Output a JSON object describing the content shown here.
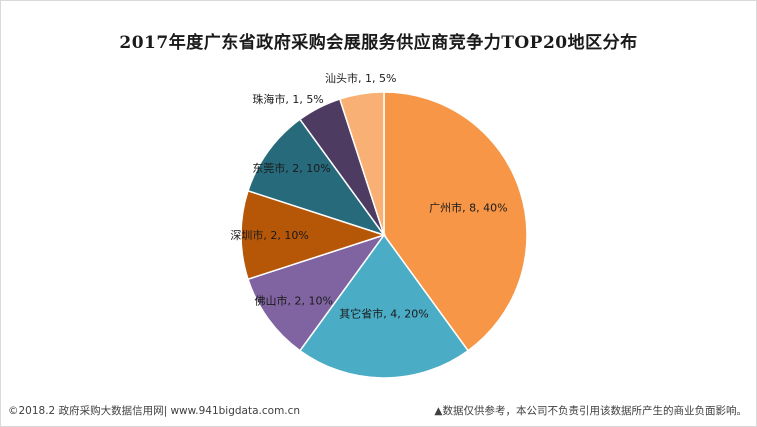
{
  "chart_data": {
    "type": "pie",
    "title": "2017年度广东省政府采购会展服务供应商竞争力TOP20地区分布",
    "slices": [
      {
        "name": "广州市",
        "value": 8,
        "percent": "40%",
        "color": "#F79646",
        "label": "广州市, 8, 40%"
      },
      {
        "name": "其它省市",
        "value": 4,
        "percent": "20%",
        "color": "#4BACC6",
        "label": "其它省市, 4, 20%"
      },
      {
        "name": "佛山市",
        "value": 2,
        "percent": "10%",
        "color": "#8064A2",
        "label": "佛山市, 2, 10%"
      },
      {
        "name": "深圳市",
        "value": 2,
        "percent": "10%",
        "color": "#B65708",
        "label": "深圳市, 2, 10%"
      },
      {
        "name": "东莞市",
        "value": 2,
        "percent": "10%",
        "color": "#276A7C",
        "label": "东莞市, 2, 10%"
      },
      {
        "name": "珠海市",
        "value": 1,
        "percent": "5%",
        "color": "#4D3B62",
        "label": "珠海市, 1, 5%"
      },
      {
        "name": "汕头市",
        "value": 1,
        "percent": "5%",
        "color": "#F9B074",
        "label": "汕头市, 1, 5%"
      }
    ],
    "start_angle_deg": 0,
    "direction": "clockwise",
    "legend": "none"
  },
  "footer": {
    "left": "©2018.2 政府采购大数据信用网| www.941bigdata.com.cn",
    "right": "▲数据仅供参考，本公司不负责引用该数据所产生的商业负面影响。"
  }
}
